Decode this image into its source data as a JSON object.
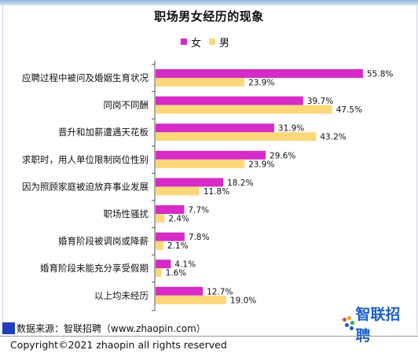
{
  "chart_data": {
    "type": "bar",
    "orientation": "horizontal",
    "title": "职场男女经历的现象",
    "categories": [
      "应聘过程中被问及婚姻生育状况",
      "同岗不同酬",
      "晋升和加薪遭遇天花板",
      "求职时，用人单位限制岗位性别",
      "因为照顾家庭被迫放弃事业发展",
      "职场性骚扰",
      "婚育阶段被调岗或降薪",
      "婚育阶段未能充分享受假期",
      "以上均未经历"
    ],
    "series": [
      {
        "name": "女",
        "color": "#d62bc6",
        "values": [
          55.8,
          39.7,
          31.9,
          29.6,
          18.2,
          7.7,
          7.8,
          4.1,
          12.7
        ]
      },
      {
        "name": "男",
        "color": "#fcd87a",
        "values": [
          23.9,
          47.5,
          43.2,
          23.9,
          11.8,
          2.4,
          2.1,
          1.6,
          19.0
        ]
      }
    ],
    "value_labels": [
      [
        "55.8%",
        "39.7%",
        "31.9%",
        "29.6%",
        "18.2%",
        "7.7%",
        "7.8%",
        "4.1%",
        "12.7%"
      ],
      [
        "23.9%",
        "47.5%",
        "43.2%",
        "23.9%",
        "11.8%",
        "2.4%",
        "2.1%",
        "1.6%",
        "19.0%"
      ]
    ],
    "xlim": [
      0,
      60
    ],
    "legend_position": "top",
    "grid": false
  },
  "source": "数据来源：智联招聘（www.zhaopin.com）",
  "logo_text": "智联招聘",
  "copyright": "Copyright©2021 zhaopin all rights reserved",
  "colors": {
    "accent_blue": "#1d5fc7",
    "female": "#d62bc6",
    "male": "#fcd87a"
  }
}
